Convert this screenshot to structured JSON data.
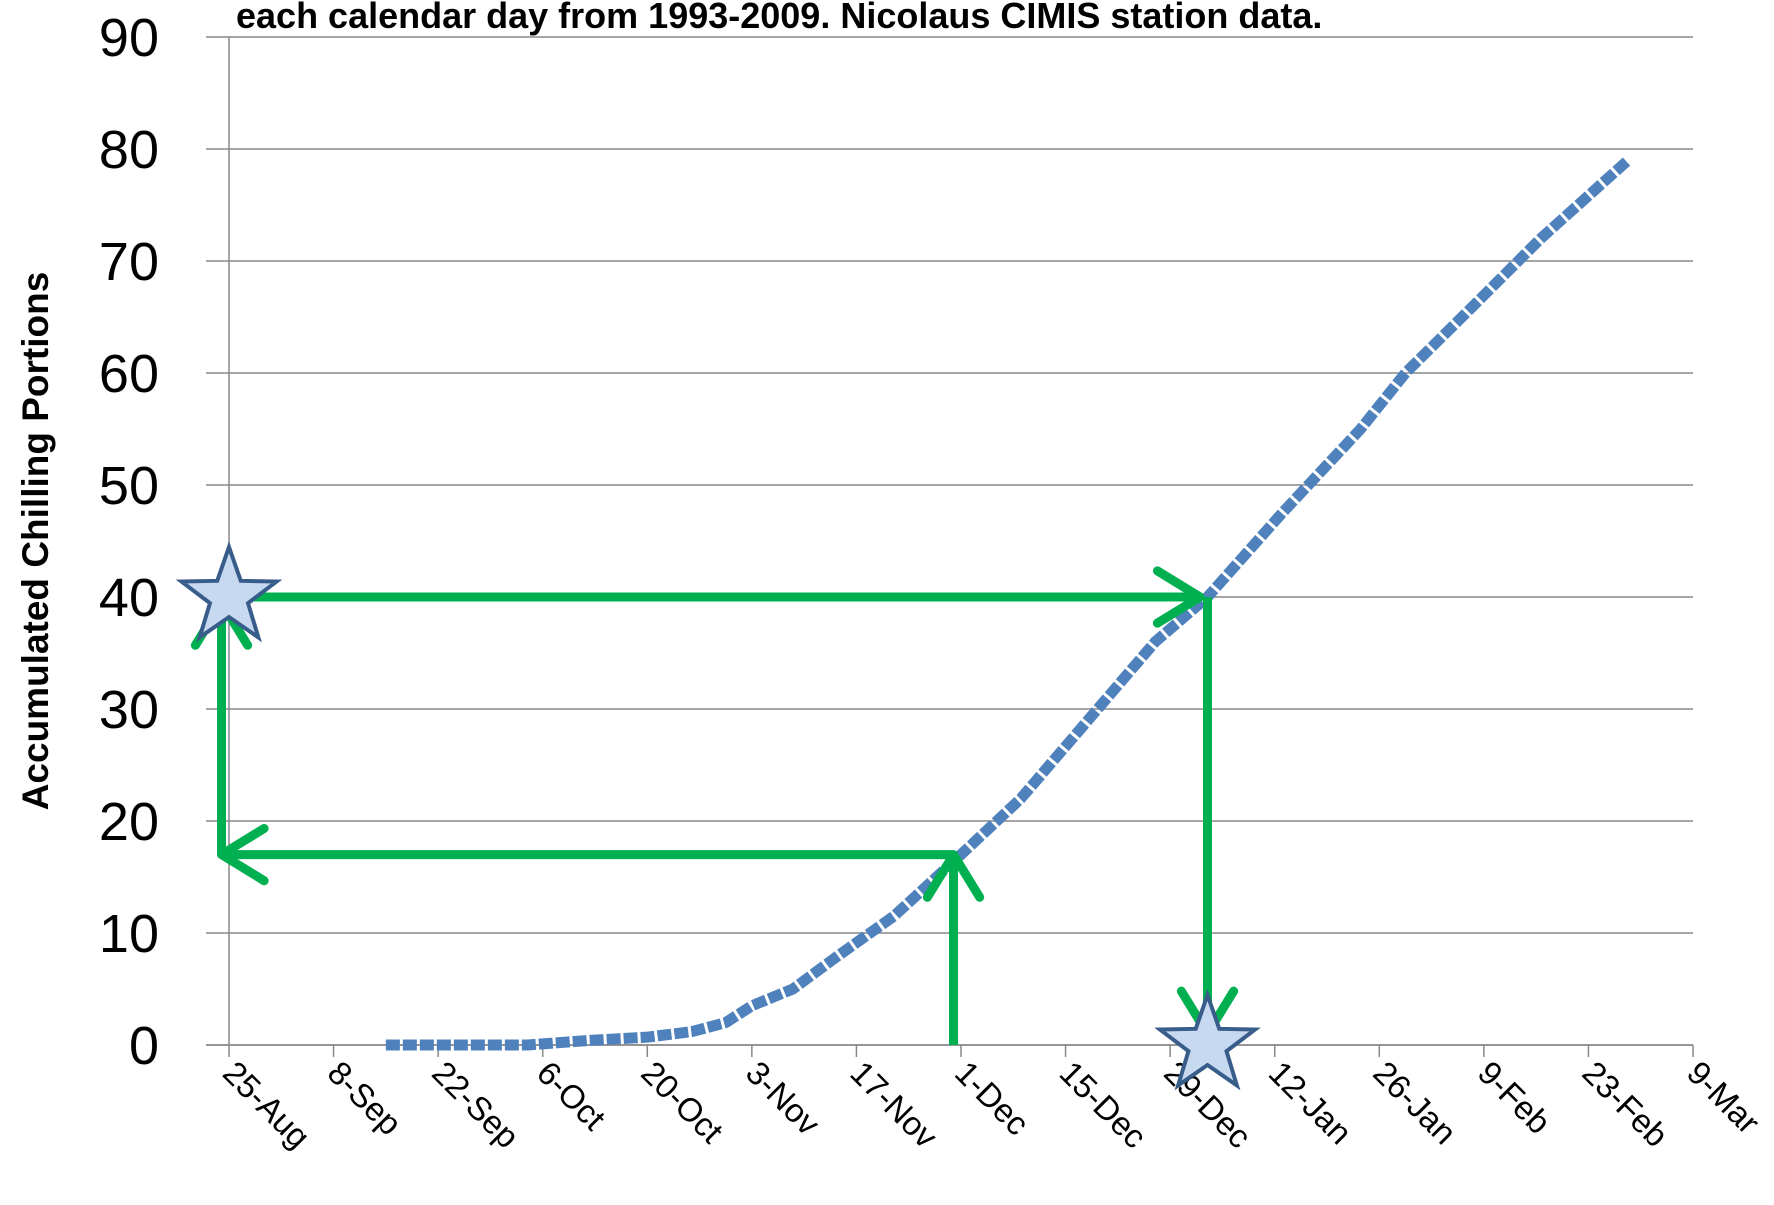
{
  "chart_data": {
    "type": "line",
    "title": "each calendar day from 1993-2009.  Nicolaus CIMIS station data.",
    "y_label": "Accumulated Chilling Portions",
    "series": [
      {
        "name": "Accumulated Chilling Portions",
        "color": "#4f81bd",
        "x": [
          21,
          30,
          40,
          42,
          48,
          56,
          62,
          66.5,
          70,
          75.5,
          81.6,
          89,
          98,
          106,
          115,
          124,
          131,
          141,
          151.5,
          157.5,
          166.6,
          175.6,
          187.3
        ],
        "values": [
          0,
          0,
          0,
          0.1,
          0.4,
          0.7,
          1.2,
          2,
          3.5,
          5,
          8,
          11.5,
          17,
          22,
          29,
          36,
          40,
          47.5,
          55,
          60,
          66,
          72,
          79
        ]
      }
    ],
    "xlim": [
      0,
      196
    ],
    "xticks": [
      {
        "value": 0,
        "label": "25-Aug"
      },
      {
        "value": 14,
        "label": "8-Sep"
      },
      {
        "value": 28,
        "label": "22-Sep"
      },
      {
        "value": 42,
        "label": "6-Oct"
      },
      {
        "value": 56,
        "label": "20-Oct"
      },
      {
        "value": 70,
        "label": "3-Nov"
      },
      {
        "value": 84,
        "label": "17-Nov"
      },
      {
        "value": 98,
        "label": "1-Dec"
      },
      {
        "value": 112,
        "label": "15-Dec"
      },
      {
        "value": 126,
        "label": "29-Dec"
      },
      {
        "value": 140,
        "label": "12-Jan"
      },
      {
        "value": 154,
        "label": "26-Jan"
      },
      {
        "value": 168,
        "label": "9-Feb"
      },
      {
        "value": 182,
        "label": "23-Feb"
      },
      {
        "value": 196,
        "label": "9-Mar"
      }
    ],
    "ylim": [
      0,
      90
    ],
    "yticks": [
      0,
      10,
      20,
      30,
      40,
      50,
      60,
      70,
      80,
      90
    ],
    "grid": true,
    "arrow_color": "#00b050",
    "arrows": [
      {
        "from": [
          97,
          0
        ],
        "to": [
          97,
          17
        ]
      },
      {
        "from": [
          97,
          17
        ],
        "to": [
          -1,
          17
        ]
      },
      {
        "from": [
          -1,
          17
        ],
        "to": [
          -1,
          39.5
        ]
      },
      {
        "from": [
          0,
          40
        ],
        "to": [
          130,
          40
        ]
      },
      {
        "from": [
          131,
          40
        ],
        "to": [
          131,
          1
        ]
      }
    ],
    "stars": [
      [
        0,
        40
      ],
      [
        131,
        0
      ]
    ]
  }
}
